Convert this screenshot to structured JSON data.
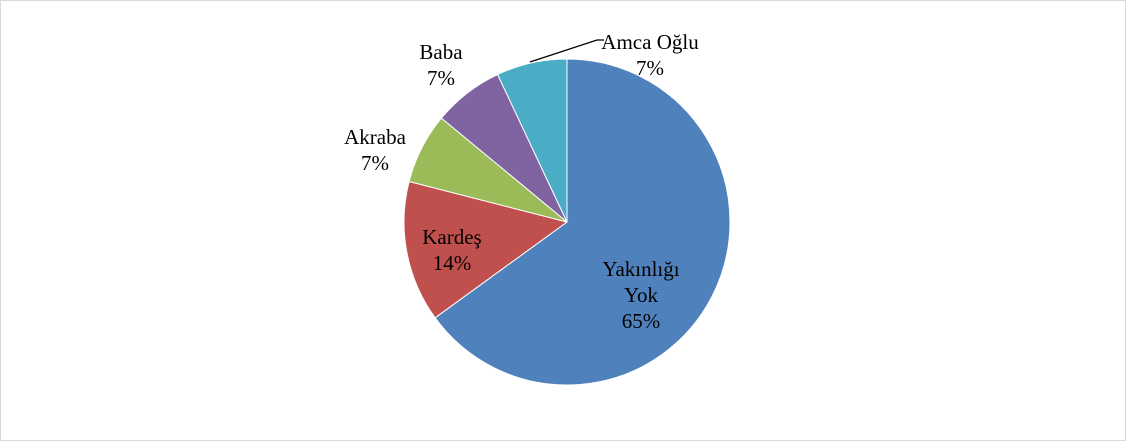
{
  "chart_data": {
    "type": "pie",
    "categories": [
      "Yakınlığı Yok",
      "Kardeş",
      "Akraba",
      "Baba",
      "Amca Oğlu"
    ],
    "values": [
      65,
      14,
      7,
      7,
      7
    ],
    "value_labels": [
      "65%",
      "14%",
      "7%",
      "7%",
      "7%"
    ],
    "colors": [
      "#4f81bd",
      "#c0504d",
      "#9bbb59",
      "#8064a2",
      "#4bacc6"
    ]
  }
}
